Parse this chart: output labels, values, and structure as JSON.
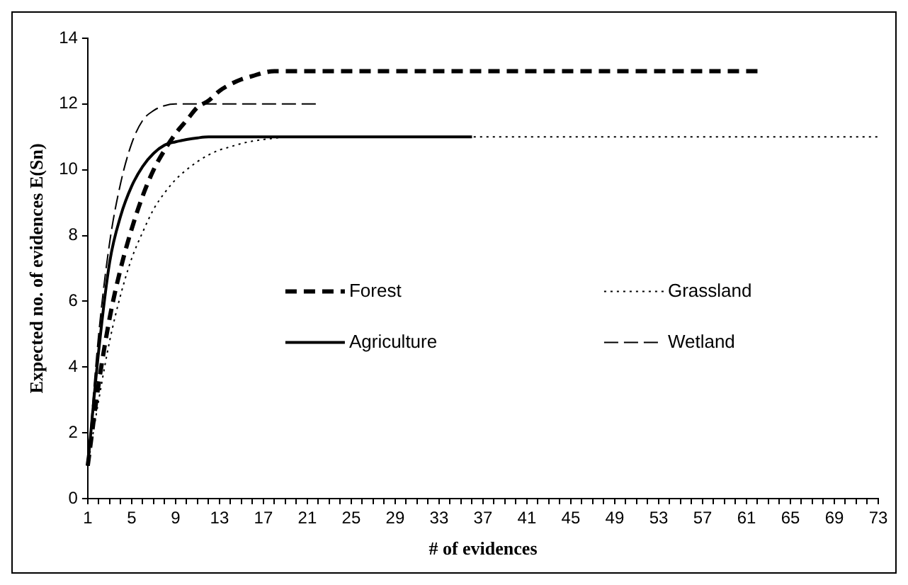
{
  "chart_data": {
    "type": "line",
    "xlabel": "# of evidences",
    "ylabel": "Expected no. of evidences E(Sn)",
    "categories": [
      "1",
      null,
      null,
      null,
      "5",
      null,
      null,
      null,
      "9",
      null,
      null,
      null,
      "13",
      null,
      null,
      null,
      "17",
      null,
      null,
      null,
      "21",
      null,
      null,
      null,
      "25",
      null,
      null,
      null,
      "29",
      null,
      null,
      null,
      "33",
      null,
      null,
      null,
      "37",
      null,
      null,
      null,
      "41",
      null,
      null,
      null,
      "45",
      null,
      null,
      null,
      "49",
      null,
      null,
      null,
      "53",
      null,
      null,
      null,
      "57",
      null,
      null,
      null,
      "61",
      null,
      null,
      null,
      "65",
      null,
      null,
      null,
      "69",
      null,
      null,
      null,
      "73"
    ],
    "ylim": [
      0,
      14
    ],
    "yticks": [
      0,
      2,
      4,
      6,
      8,
      10,
      12,
      14
    ],
    "grid": false,
    "legend": "center",
    "marker": "none",
    "series": [
      {
        "name": "Forest",
        "color": "#000000",
        "line_style": "dashed",
        "values": [
          1,
          3.5,
          5.5,
          7,
          8.2,
          9.2,
          10,
          10.6,
          11.1,
          11.5,
          11.9,
          12.1,
          12.4,
          12.6,
          12.75,
          12.85,
          12.95,
          13,
          13,
          13,
          13,
          13,
          13,
          13,
          13,
          13,
          13,
          13,
          13,
          13,
          13,
          13,
          13,
          13,
          13,
          13,
          13,
          13,
          13,
          13,
          13,
          13,
          13,
          13,
          13,
          13,
          13,
          13,
          13,
          13,
          13,
          13,
          13,
          13,
          13,
          13,
          13,
          13,
          13,
          13,
          13,
          13,
          null,
          null,
          null,
          null,
          null,
          null,
          null,
          null,
          null,
          null,
          null
        ]
      },
      {
        "name": "Grassland",
        "color": "#000000",
        "line_style": "dotted",
        "values": [
          1,
          3,
          4.8,
          6.2,
          7.3,
          8.1,
          8.8,
          9.3,
          9.7,
          10,
          10.25,
          10.45,
          10.6,
          10.7,
          10.8,
          10.87,
          10.92,
          10.96,
          11,
          11,
          11,
          11,
          11,
          11,
          11,
          11,
          11,
          11,
          11,
          11,
          11,
          11,
          11,
          11,
          11,
          11,
          11,
          11,
          11,
          11,
          11,
          11,
          11,
          11,
          11,
          11,
          11,
          11,
          11,
          11,
          11,
          11,
          11,
          11,
          11,
          11,
          11,
          11,
          11,
          11,
          11,
          11,
          11,
          11,
          11,
          11,
          11,
          11,
          11,
          11,
          11,
          11,
          11
        ]
      },
      {
        "name": "Agriculture",
        "color": "#000000",
        "line_style": "solid",
        "values": [
          1,
          4.5,
          7.2,
          8.6,
          9.5,
          10.1,
          10.5,
          10.75,
          10.85,
          10.92,
          10.97,
          11,
          11,
          11,
          11,
          11,
          11,
          11,
          11,
          11,
          11,
          11,
          11,
          11,
          11,
          11,
          11,
          11,
          11,
          11,
          11,
          11,
          11,
          11,
          11,
          11,
          null,
          null,
          null,
          null,
          null,
          null,
          null,
          null,
          null,
          null,
          null,
          null,
          null,
          null,
          null,
          null,
          null,
          null,
          null,
          null,
          null,
          null,
          null,
          null,
          null,
          null,
          null,
          null,
          null,
          null,
          null,
          null,
          null,
          null,
          null,
          null,
          null
        ]
      },
      {
        "name": "Wetland",
        "color": "#000000",
        "line_style": "dashed",
        "values": [
          1,
          5,
          7.8,
          9.6,
          10.8,
          11.5,
          11.8,
          11.95,
          12,
          12,
          12,
          12,
          12,
          12,
          12,
          12,
          12,
          12,
          12,
          12,
          12,
          12,
          null,
          null,
          null,
          null,
          null,
          null,
          null,
          null,
          null,
          null,
          null,
          null,
          null,
          null,
          null,
          null,
          null,
          null,
          null,
          null,
          null,
          null,
          null,
          null,
          null,
          null,
          null,
          null,
          null,
          null,
          null,
          null,
          null,
          null,
          null,
          null,
          null,
          null,
          null,
          null,
          null,
          null,
          null,
          null,
          null,
          null,
          null,
          null,
          null,
          null,
          null
        ]
      }
    ]
  }
}
